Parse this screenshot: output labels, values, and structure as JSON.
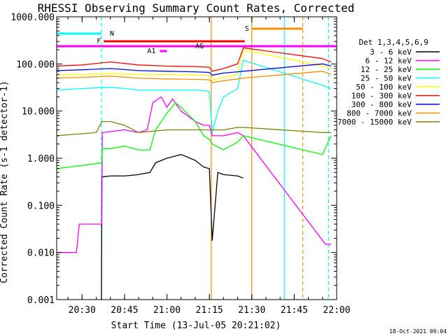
{
  "chart_data": {
    "type": "line",
    "title": "RHESSI Observing Summary Count Rates, Corrected",
    "xlabel": "Start Time (13-Jul-05 20:21:02)",
    "ylabel": "Corrected Count Rate (s-1 detector-1)",
    "y_scale": "log",
    "ylim": [
      0.001,
      1000
    ],
    "xlim": [
      "20:21:02",
      "22:00"
    ],
    "x_ticks": [
      "20:30",
      "20:45",
      "21:00",
      "21:15",
      "21:30",
      "21:45",
      "22:00"
    ],
    "y_ticks": [
      "0.001",
      "0.010",
      "0.100",
      "1.000",
      "10.000",
      "100.000",
      "1000.000"
    ],
    "legend_title": "Det 1,3,4,5,6,9",
    "legend_position": "right",
    "series": [
      {
        "name": "3 - 6 keV",
        "color": "#000000",
        "x": [
          "20:36:50",
          "20:37:00",
          "20:40",
          "20:45",
          "20:50",
          "20:54",
          "20:56",
          "21:00",
          "21:05",
          "21:10",
          "21:13",
          "21:15",
          "21:16",
          "21:18",
          "21:20",
          "21:25",
          "21:27"
        ],
        "y": [
          0.001,
          0.4,
          0.42,
          0.42,
          0.45,
          0.5,
          0.8,
          1.0,
          1.2,
          0.9,
          0.65,
          0.6,
          0.018,
          0.5,
          0.45,
          0.42,
          0.38
        ]
      },
      {
        "name": "6 - 12 keV",
        "color": "#ff00ff",
        "x": [
          "20:21:02",
          "20:28",
          "20:29",
          "20:33",
          "20:34",
          "20:37",
          "20:37:10",
          "20:45",
          "20:50",
          "20:53",
          "20:55",
          "20:58",
          "21:00",
          "21:02",
          "21:05",
          "21:10",
          "21:13",
          "21:15",
          "21:16",
          "21:20",
          "21:25",
          "21:27",
          "21:56",
          "21:58"
        ],
        "y": [
          0.01,
          0.01,
          0.04,
          0.04,
          0.04,
          0.04,
          3.5,
          4,
          3.5,
          4,
          15,
          20,
          12,
          18,
          10,
          6,
          5,
          5,
          3,
          3,
          3.5,
          3,
          0.015,
          0.015
        ]
      },
      {
        "name": "12 - 25 keV",
        "color": "#00ff00",
        "x": [
          "20:21:02",
          "20:30",
          "20:37",
          "20:37:10",
          "20:40",
          "20:45",
          "20:50",
          "20:54",
          "20:56",
          "21:00",
          "21:03",
          "21:05",
          "21:10",
          "21:13",
          "21:15",
          "21:16",
          "21:20",
          "21:25",
          "21:27",
          "21:55",
          "21:58"
        ],
        "y": [
          0.6,
          0.7,
          0.8,
          1.6,
          1.6,
          1.8,
          1.5,
          1.5,
          4,
          9,
          15,
          12,
          6,
          3,
          2.5,
          2,
          1.5,
          2.2,
          3,
          1.2,
          3
        ]
      },
      {
        "name": "25 - 50 keV",
        "color": "#00ffff",
        "x": [
          "20:21:02",
          "20:30",
          "20:40",
          "20:45",
          "20:50",
          "21:00",
          "21:05",
          "21:10",
          "21:13",
          "21:15",
          "21:16",
          "21:18",
          "21:20",
          "21:25",
          "21:27",
          "21:55",
          "21:58"
        ],
        "y": [
          28,
          30,
          32,
          30,
          28,
          28,
          28,
          28,
          27,
          26,
          3.5,
          10,
          20,
          30,
          120,
          35,
          30
        ]
      },
      {
        "name": "50 - 100 keV",
        "color": "#ffff00",
        "x": [
          "20:21:02",
          "20:30",
          "20:40",
          "20:50",
          "21:00",
          "21:10",
          "21:15",
          "21:16",
          "21:20",
          "21:25",
          "21:27",
          "21:55",
          "21:58"
        ],
        "y": [
          58,
          60,
          62,
          60,
          60,
          58,
          57,
          45,
          52,
          60,
          200,
          90,
          80
        ]
      },
      {
        "name": "100 - 300 keV",
        "color": "#ff0000",
        "x": [
          "20:21:02",
          "20:30",
          "20:40",
          "20:50",
          "21:00",
          "21:10",
          "21:15",
          "21:16",
          "21:20",
          "21:25",
          "21:27",
          "21:55",
          "21:58"
        ],
        "y": [
          90,
          95,
          110,
          95,
          90,
          88,
          85,
          70,
          80,
          100,
          220,
          130,
          110
        ]
      },
      {
        "name": "300 - 800 keV",
        "color": "#0000ff",
        "x": [
          "20:21:02",
          "20:30",
          "20:40",
          "20:50",
          "21:00",
          "21:10",
          "21:15",
          "21:16",
          "21:20",
          "21:25",
          "21:27",
          "21:55",
          "21:58"
        ],
        "y": [
          72,
          75,
          80,
          72,
          70,
          68,
          66,
          58,
          64,
          68,
          70,
          100,
          90
        ]
      },
      {
        "name": "800 - 7000 keV",
        "color": "#ff8c00",
        "x": [
          "20:21:02",
          "20:30",
          "20:40",
          "20:50",
          "21:00",
          "21:10",
          "21:15",
          "21:16",
          "21:20",
          "21:25",
          "21:27",
          "21:55",
          "21:58"
        ],
        "y": [
          50,
          52,
          55,
          50,
          48,
          47,
          46,
          40,
          44,
          48,
          50,
          70,
          60
        ]
      },
      {
        "name": "7000 - 15000 keV",
        "color": "#808000",
        "x": [
          "20:21:02",
          "20:35",
          "20:37",
          "20:40",
          "20:45",
          "20:50",
          "21:00",
          "21:10",
          "21:14",
          "21:16",
          "21:20",
          "21:25",
          "21:27",
          "21:55",
          "21:58"
        ],
        "y": [
          3,
          3.5,
          6,
          6,
          5,
          3.5,
          4,
          4,
          4,
          4,
          4,
          4.5,
          4.5,
          3.5,
          3.5
        ]
      }
    ],
    "annotations": [
      {
        "text": "N",
        "color": "#00ffff",
        "kind": "night",
        "x_start": "20:21:02",
        "x_end": "20:36:50"
      },
      {
        "text": "F",
        "color": "#ff0000",
        "kind": "flare",
        "x_start": "20:37:40",
        "x_end": "21:27:30"
      },
      {
        "text": "AG",
        "color": "#ff00ff",
        "kind": "attenuator",
        "x_start": "20:21:02",
        "x_end": "22:00"
      },
      {
        "text": "A1",
        "color": "#ff00ff",
        "kind": "attenuator-state",
        "x_start": "20:57:30",
        "x_end": "21:00:00"
      },
      {
        "text": "S",
        "color": "#ff8c00",
        "kind": "saa",
        "x_start": "21:30:00",
        "x_end": "21:48:00"
      }
    ],
    "vlines": [
      {
        "x": "20:36:50",
        "color": "#00ffff",
        "style": "dashed"
      },
      {
        "x": "21:15:40",
        "color": "#ff8c00",
        "style": "solid"
      },
      {
        "x": "21:30:00",
        "color": "#ff8c00",
        "style": "solid"
      },
      {
        "x": "21:41:30",
        "color": "#00ffff",
        "style": "solid"
      },
      {
        "x": "21:48:00",
        "color": "#ff8c00",
        "style": "dashed"
      },
      {
        "x": "21:57:10",
        "color": "#00ffff",
        "style": "dashed"
      }
    ]
  },
  "footer_date": "18-Oct-2021 09:04"
}
